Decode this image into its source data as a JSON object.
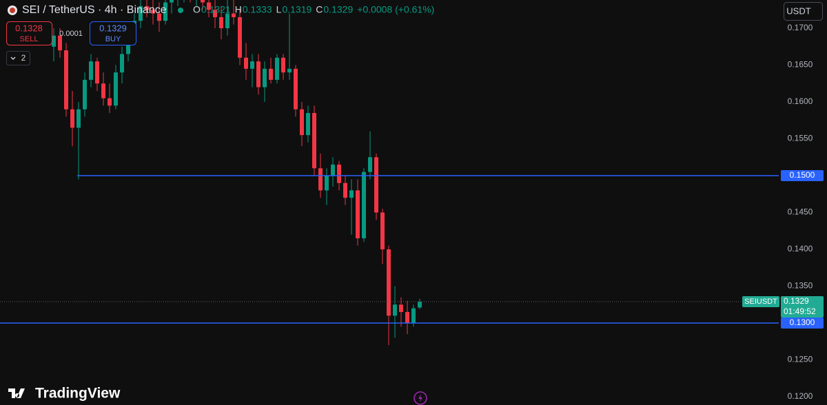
{
  "header": {
    "symbol": "SEI / TetherUS · 4h · Binance",
    "ohlc": [
      {
        "key": "O",
        "value": "0.1321"
      },
      {
        "key": "H",
        "value": "0.1333"
      },
      {
        "key": "L",
        "value": "0.1319"
      },
      {
        "key": "C",
        "value": "0.1329"
      }
    ],
    "change": "+0.0008 (+0.61%)"
  },
  "trade": {
    "sell_price": "0.1328",
    "sell": "SELL",
    "spread": "0.0001",
    "buy_price": "0.1329",
    "buy": "BUY",
    "indicators": "2"
  },
  "currency": "USDT",
  "logo": "TradingView",
  "chart_data": {
    "type": "candlestick",
    "up_color": "#089981",
    "down_color": "#f23645",
    "grid": false,
    "open": [
      0.1675,
      0.169,
      0.167,
      0.159,
      0.1565,
      0.159,
      0.163,
      0.1655,
      0.1625,
      0.1605,
      0.1595,
      0.164,
      0.1665,
      0.169,
      0.171,
      0.173,
      0.1725,
      0.172,
      0.171,
      0.1735,
      0.174,
      0.1745,
      0.175,
      0.174,
      0.1745,
      0.1735,
      0.1725,
      0.1715,
      0.17,
      0.172,
      0.1715,
      0.166,
      0.1645,
      0.1655,
      0.162,
      0.1645,
      0.163,
      0.166,
      0.164,
      0.1645,
      0.159,
      0.1555,
      0.1585,
      0.151,
      0.148,
      0.15,
      0.1515,
      0.149,
      0.147,
      0.148,
      0.1415,
      0.1505,
      0.1525,
      0.145,
      0.14,
      0.131,
      0.1325,
      0.1315,
      0.13,
      0.1321
    ],
    "high": [
      0.17,
      0.17,
      0.168,
      0.1615,
      0.16,
      0.164,
      0.1665,
      0.166,
      0.164,
      0.1625,
      0.165,
      0.1675,
      0.17,
      0.172,
      0.174,
      0.1745,
      0.174,
      0.1735,
      0.174,
      0.175,
      0.1755,
      0.176,
      0.176,
      0.1755,
      0.1755,
      0.1745,
      0.174,
      0.173,
      0.1745,
      0.174,
      0.1725,
      0.168,
      0.1665,
      0.1665,
      0.1655,
      0.166,
      0.1665,
      0.1665,
      0.172,
      0.165,
      0.16,
      0.1595,
      0.1595,
      0.153,
      0.151,
      0.1525,
      0.152,
      0.15,
      0.1495,
      0.1495,
      0.151,
      0.156,
      0.153,
      0.1455,
      0.1405,
      0.135,
      0.1335,
      0.133,
      0.1325,
      0.1333
    ],
    "low": [
      0.1655,
      0.166,
      0.158,
      0.154,
      0.1495,
      0.158,
      0.162,
      0.1615,
      0.1595,
      0.1585,
      0.159,
      0.1625,
      0.1655,
      0.168,
      0.17,
      0.1715,
      0.1705,
      0.1695,
      0.1705,
      0.172,
      0.173,
      0.1735,
      0.1735,
      0.173,
      0.1725,
      0.1715,
      0.17,
      0.1685,
      0.169,
      0.1705,
      0.165,
      0.163,
      0.162,
      0.161,
      0.16,
      0.1625,
      0.1625,
      0.163,
      0.163,
      0.158,
      0.154,
      0.1545,
      0.15,
      0.147,
      0.146,
      0.1485,
      0.148,
      0.146,
      0.142,
      0.1405,
      0.141,
      0.1495,
      0.144,
      0.138,
      0.127,
      0.128,
      0.1295,
      0.1285,
      0.1295,
      0.1319
    ],
    "close": [
      0.169,
      0.167,
      0.159,
      0.1565,
      0.159,
      0.163,
      0.1655,
      0.1625,
      0.1605,
      0.1595,
      0.164,
      0.1665,
      0.169,
      0.171,
      0.173,
      0.1725,
      0.172,
      0.171,
      0.1735,
      0.174,
      0.1745,
      0.175,
      0.174,
      0.1745,
      0.1735,
      0.1725,
      0.1715,
      0.17,
      0.172,
      0.1715,
      0.166,
      0.1645,
      0.1655,
      0.162,
      0.1645,
      0.163,
      0.166,
      0.164,
      0.1645,
      0.159,
      0.1555,
      0.1585,
      0.151,
      0.148,
      0.15,
      0.1515,
      0.149,
      0.147,
      0.148,
      0.1415,
      0.1505,
      0.1525,
      0.145,
      0.14,
      0.131,
      0.1325,
      0.1315,
      0.13,
      0.132,
      0.1329
    ],
    "ylim": [
      0.11888,
      0.17383
    ],
    "yticks": [
      {
        "value": 0.12,
        "label": "0.1200"
      },
      {
        "value": 0.125,
        "label": "0.1250"
      },
      {
        "value": 0.13,
        "label": "0.1300"
      },
      {
        "value": 0.135,
        "label": "0.1350"
      },
      {
        "value": 0.14,
        "label": "0.1400"
      },
      {
        "value": 0.145,
        "label": "0.1450"
      },
      {
        "value": 0.15,
        "label": "0.1500"
      },
      {
        "value": 0.155,
        "label": "0.1550"
      },
      {
        "value": 0.16,
        "label": "0.1600"
      },
      {
        "value": 0.165,
        "label": "0.1650"
      },
      {
        "value": 0.17,
        "label": "0.1700"
      }
    ],
    "levels": [
      {
        "value": 0.15,
        "label": "0.1500",
        "color": "#2962ff"
      },
      {
        "value": 0.13,
        "label": "0.1300",
        "color": "#2962ff"
      }
    ],
    "last_price": {
      "symbol": "SEIUSDT",
      "value": 0.1329,
      "countdown": "01:49:52",
      "color": "#22ab94"
    }
  }
}
